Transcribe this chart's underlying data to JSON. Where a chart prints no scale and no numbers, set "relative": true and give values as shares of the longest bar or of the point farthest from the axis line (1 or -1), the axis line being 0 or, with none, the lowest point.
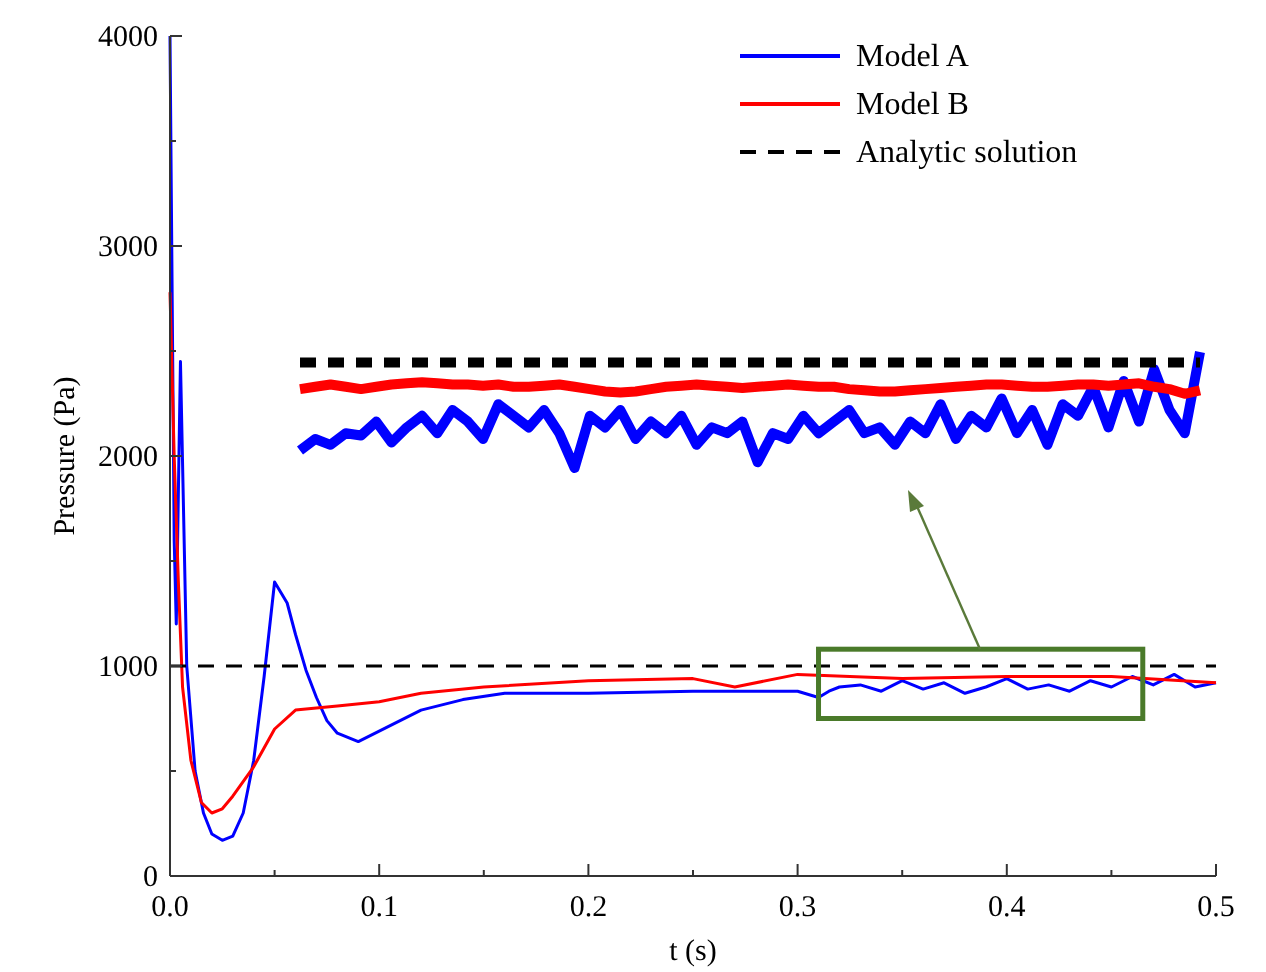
{
  "chart_data": [
    {
      "type": "line",
      "xlabel": "t (s)",
      "ylabel": "Pressure (Pa)",
      "xlim": [
        0,
        0.5
      ],
      "ylim": [
        0,
        4000
      ],
      "xticks": [
        {
          "value": 0,
          "label": "0.0"
        },
        {
          "value": 0.05,
          "label": null
        },
        0.1,
        {
          "value": 0.15,
          "label": null
        },
        0.2,
        {
          "value": 0.25,
          "label": null
        },
        0.3,
        {
          "value": 0.35,
          "label": null
        },
        0.4,
        {
          "value": 0.45,
          "label": null
        },
        0.5
      ],
      "yticks": [
        0,
        {
          "value": 500,
          "label": null
        },
        1000,
        {
          "value": 1500,
          "label": null
        },
        2000,
        {
          "value": 2500,
          "label": null
        },
        3000,
        {
          "value": 3500,
          "label": null
        },
        4000
      ],
      "grid": false,
      "legend": "top right",
      "marker": "none",
      "series": [
        {
          "name": "Model A",
          "color": "#0000ff",
          "x": [
            0,
            0.002,
            0.003,
            0.005,
            0.008,
            0.012,
            0.016,
            0.02,
            0.025,
            0.03,
            0.035,
            0.04,
            0.045,
            0.05,
            0.053,
            0.056,
            0.06,
            0.065,
            0.07,
            0.075,
            0.08,
            0.09,
            0.1,
            0.11,
            0.12,
            0.14,
            0.16,
            0.18,
            0.2,
            0.25,
            0.3,
            0.31,
            0.315,
            0.32,
            0.33,
            0.34,
            0.35,
            0.36,
            0.37,
            0.38,
            0.39,
            0.4,
            0.41,
            0.42,
            0.43,
            0.44,
            0.45,
            0.46,
            0.47,
            0.48,
            0.49,
            0.5
          ],
          "values": [
            4000,
            1600,
            1200,
            2450,
            1000,
            500,
            300,
            200,
            170,
            190,
            300,
            550,
            950,
            1400,
            1350,
            1300,
            1150,
            980,
            850,
            740,
            680,
            640,
            690,
            740,
            790,
            840,
            870,
            870,
            870,
            880,
            880,
            850,
            880,
            900,
            910,
            880,
            930,
            890,
            920,
            870,
            900,
            940,
            890,
            910,
            880,
            930,
            900,
            950,
            910,
            960,
            900,
            920
          ]
        },
        {
          "name": "Model B",
          "color": "#ff0000",
          "x": [
            0,
            0.002,
            0.004,
            0.006,
            0.01,
            0.015,
            0.02,
            0.025,
            0.03,
            0.04,
            0.05,
            0.06,
            0.07,
            0.08,
            0.1,
            0.12,
            0.15,
            0.2,
            0.25,
            0.27,
            0.3,
            0.35,
            0.4,
            0.45,
            0.5
          ],
          "values": [
            2780,
            2000,
            1400,
            900,
            550,
            350,
            300,
            320,
            380,
            520,
            700,
            790,
            800,
            810,
            830,
            870,
            900,
            930,
            940,
            900,
            960,
            940,
            950,
            950,
            920
          ]
        },
        {
          "name": "Analytic solution",
          "color": "#000000",
          "line_style": "dashed",
          "x": [
            0,
            0.5
          ],
          "values": [
            1000,
            1000
          ]
        }
      ]
    },
    {
      "type": "line",
      "relative": true,
      "marker": "none",
      "categories": [
        null,
        null,
        null,
        null,
        null,
        null,
        null,
        null,
        null,
        null,
        null,
        null,
        null,
        null,
        null,
        null,
        null,
        null,
        null,
        null,
        null,
        null,
        null,
        null,
        null,
        null,
        null,
        null,
        null,
        null,
        null,
        null,
        null,
        null,
        null,
        null,
        null,
        null,
        null,
        null,
        null,
        null,
        null,
        null,
        null,
        null,
        null,
        null,
        null,
        null,
        null,
        null,
        null,
        null,
        null,
        null,
        null,
        null,
        null,
        null
      ],
      "series": [
        {
          "color": "#0000ff",
          "values": [
            0.15,
            0.25,
            0.2,
            0.3,
            0.28,
            0.4,
            0.22,
            0.35,
            0.45,
            0.3,
            0.5,
            0.4,
            0.25,
            0.55,
            0.45,
            0.35,
            0.5,
            0.3,
            0.0,
            0.45,
            0.35,
            0.5,
            0.25,
            0.4,
            0.3,
            0.45,
            0.2,
            0.35,
            0.3,
            0.4,
            0.05,
            0.3,
            0.25,
            0.45,
            0.3,
            0.4,
            0.5,
            0.3,
            0.35,
            0.2,
            0.4,
            0.3,
            0.55,
            0.25,
            0.45,
            0.35,
            0.6,
            0.3,
            0.5,
            0.2,
            0.55,
            0.45,
            0.7,
            0.35,
            0.75,
            0.4,
            0.85,
            0.5,
            0.3,
            1.0
          ]
        },
        {
          "color": "#ff0000",
          "values": [
            0.68,
            0.7,
            0.72,
            0.7,
            0.68,
            0.7,
            0.72,
            0.73,
            0.74,
            0.73,
            0.72,
            0.72,
            0.71,
            0.72,
            0.7,
            0.7,
            0.71,
            0.72,
            0.7,
            0.68,
            0.66,
            0.65,
            0.66,
            0.68,
            0.7,
            0.71,
            0.72,
            0.71,
            0.7,
            0.69,
            0.7,
            0.71,
            0.72,
            0.71,
            0.7,
            0.7,
            0.68,
            0.67,
            0.66,
            0.66,
            0.67,
            0.68,
            0.69,
            0.7,
            0.71,
            0.72,
            0.72,
            0.71,
            0.7,
            0.7,
            0.71,
            0.72,
            0.72,
            0.71,
            0.72,
            0.73,
            0.7,
            0.68,
            0.64,
            0.67
          ]
        },
        {
          "color": "#000000",
          "line_style": "dashed",
          "values": [
            0.91,
            0.91,
            0.91,
            0.91,
            0.91,
            0.91,
            0.91,
            0.91,
            0.91,
            0.91,
            0.91,
            0.91,
            0.91,
            0.91,
            0.91,
            0.91,
            0.91,
            0.91,
            0.91,
            0.91,
            0.91,
            0.91,
            0.91,
            0.91,
            0.91,
            0.91,
            0.91,
            0.91,
            0.91,
            0.91,
            0.91,
            0.91,
            0.91,
            0.91,
            0.91,
            0.91,
            0.91,
            0.91,
            0.91,
            0.91,
            0.91,
            0.91,
            0.91,
            0.91,
            0.91,
            0.91,
            0.91,
            0.91,
            0.91,
            0.91,
            0.91,
            0.91,
            0.91,
            0.91,
            0.91,
            0.91,
            0.91,
            0.91,
            0.91,
            0.91
          ]
        }
      ]
    }
  ]
}
